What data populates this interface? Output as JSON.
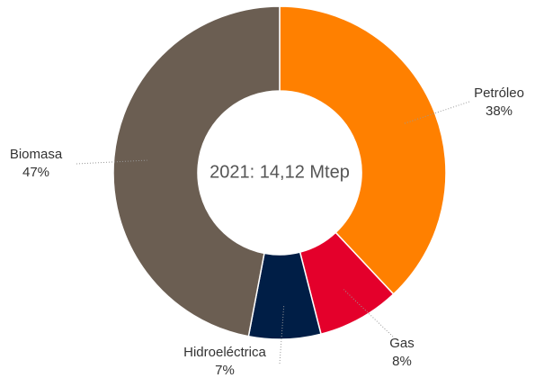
{
  "chart_data": {
    "type": "donut",
    "center_text": "2021: 14,12 Mtep",
    "categories": [
      "Petróleo",
      "Gas",
      "Hidroeléctrica",
      "Biomasa"
    ],
    "values": [
      38,
      8,
      7,
      47
    ],
    "value_labels": [
      "38%",
      "8%",
      "7%",
      "47%"
    ],
    "colors": [
      "#ff8000",
      "#e4002b",
      "#001e46",
      "#6b5e52"
    ]
  }
}
